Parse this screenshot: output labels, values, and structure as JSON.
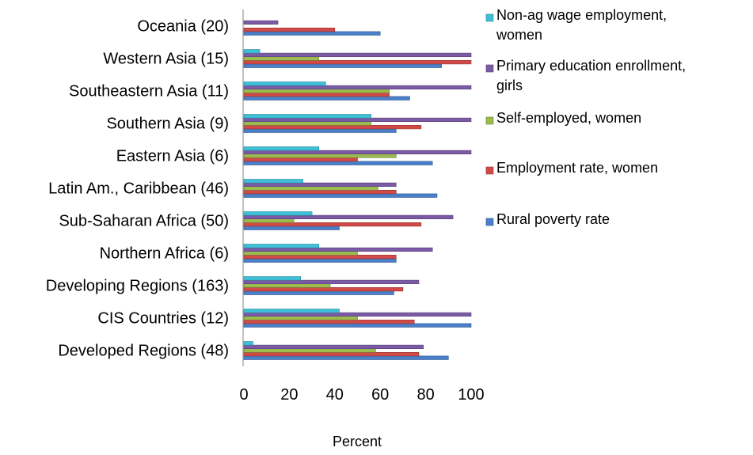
{
  "chart_data": {
    "type": "bar",
    "orientation": "horizontal",
    "categories": [
      "Developed Regions (48)",
      "CIS Countries (12)",
      "Developing Regions (163)",
      "Northern Africa (6)",
      "Sub-Saharan Africa (50)",
      "Latin Am., Caribbean (46)",
      "Eastern Asia (6)",
      "Southern Asia (9)",
      "Southeastern Asia (11)",
      "Western Asia (15)",
      "Oceania (20)"
    ],
    "series": [
      {
        "name": "Rural poverty rate",
        "color": "#4a7fc9",
        "values": [
          90,
          100,
          66,
          67,
          42,
          85,
          83,
          67,
          73,
          87,
          60
        ]
      },
      {
        "name": "Employment rate, women",
        "color": "#d24a47",
        "values": [
          77,
          75,
          70,
          67,
          78,
          67,
          50,
          78,
          64,
          100,
          40
        ]
      },
      {
        "name": "Self-employed, women",
        "color": "#9bbb4e",
        "values": [
          58,
          50,
          38,
          50,
          22,
          59,
          67,
          56,
          64,
          33,
          null
        ]
      },
      {
        "name": "Primary education enrollment, girls",
        "color": "#7b5aa6",
        "values": [
          79,
          100,
          77,
          83,
          92,
          67,
          100,
          100,
          100,
          100,
          15
        ]
      },
      {
        "name": "Non-ag wage employment, women",
        "color": "#3ec1d8",
        "values": [
          4,
          42,
          25,
          33,
          30,
          26,
          33,
          56,
          36,
          7,
          null
        ]
      }
    ],
    "xlim": [
      0,
      100
    ],
    "xticks": [
      "0",
      "20",
      "40",
      "60",
      "80",
      "100"
    ],
    "xlabel": "Percent",
    "legend": {
      "placement": "right",
      "entries": [
        {
          "lines": [
            "Non-ag wage employment,",
            "women"
          ],
          "color": "#3ec1d8"
        },
        {
          "lines": [
            "Primary education enrollment,",
            "girls"
          ],
          "color": "#7b5aa6"
        },
        {
          "lines": [
            "Self-employed, women"
          ],
          "color": "#9bbb4e"
        },
        {
          "lines": [
            "Employment rate, women"
          ],
          "color": "#d24a47"
        },
        {
          "lines": [
            "Rural poverty rate"
          ],
          "color": "#4a7fc9"
        }
      ]
    },
    "grid": false
  }
}
